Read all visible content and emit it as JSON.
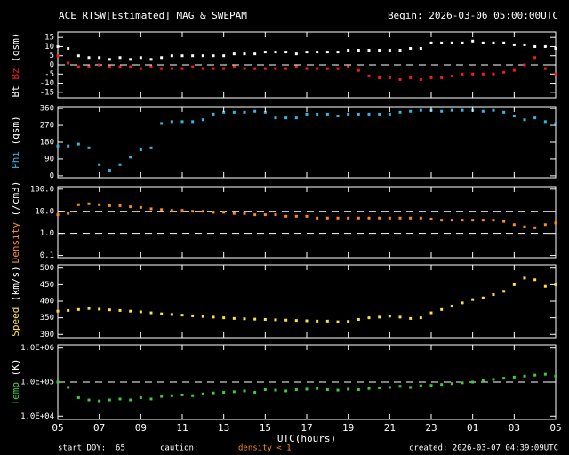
{
  "header": {
    "title": "ACE RTSW[Estimated] MAG & SWEPAM",
    "begin": "Begin: 2026-03-06 05:00:00UTC"
  },
  "footer": {
    "start": "start DOY:  65",
    "caution": "caution:",
    "density_note": "density < 1",
    "created": "created: 2026-03-07 04:39:09UTC"
  },
  "chart_data": [
    {
      "type": "scatter",
      "ylabel": "(gsm)",
      "xlim": [
        0,
        24
      ],
      "ylim": [
        -18,
        18
      ],
      "yticks": [
        15,
        10,
        5,
        0,
        -5,
        -10,
        -15
      ],
      "hlines": [
        0
      ],
      "x": [
        0,
        0.5,
        1,
        1.5,
        2,
        2.5,
        3,
        3.5,
        4,
        4.5,
        5,
        5.5,
        6,
        6.5,
        7,
        7.5,
        8,
        8.5,
        9,
        9.5,
        10,
        10.5,
        11,
        11.5,
        12,
        12.5,
        13,
        13.5,
        14,
        14.5,
        15,
        15.5,
        16,
        16.5,
        17,
        17.5,
        18,
        18.5,
        19,
        19.5,
        20,
        20.5,
        21,
        21.5,
        22,
        22.5,
        23,
        23.5,
        24
      ],
      "series": [
        {
          "name": "Bt",
          "color": "#ffffff",
          "values": [
            10,
            9,
            5,
            4,
            4,
            3,
            4,
            3,
            4,
            3,
            4,
            5,
            5,
            5,
            5,
            5,
            5,
            6,
            6,
            6,
            7,
            7,
            7,
            6,
            7,
            7,
            7,
            7,
            8,
            8,
            8,
            8,
            8,
            8,
            9,
            9,
            12,
            12,
            12,
            12,
            13,
            12,
            12,
            12,
            11,
            11,
            10,
            10,
            9
          ]
        },
        {
          "name": "Bz",
          "color": "#ff1a1a",
          "values": [
            5,
            1,
            -1,
            -1,
            0,
            -1,
            -1,
            -1,
            -2,
            -1,
            -2,
            -2,
            -2,
            -1,
            -2,
            -2,
            -2,
            -1,
            -2,
            -2,
            -2,
            -2,
            -2,
            -1,
            -2,
            -2,
            -2,
            -2,
            -1,
            -3,
            -6,
            -7,
            -7,
            -8,
            -7,
            -8,
            -7,
            -7,
            -6,
            -5,
            -5,
            -5,
            -5,
            -4,
            -3,
            0,
            4,
            -2,
            -5
          ]
        }
      ]
    },
    {
      "type": "scatter",
      "ylabel": "(gsm)",
      "xlim": [
        0,
        24
      ],
      "ylim": [
        -10,
        370
      ],
      "yticks": [
        360,
        270,
        180,
        90,
        0
      ],
      "x": [
        0,
        0.5,
        1,
        1.5,
        2,
        2.5,
        3,
        3.5,
        4,
        4.5,
        5,
        5.5,
        6,
        6.5,
        7,
        7.5,
        8,
        8.5,
        9,
        9.5,
        10,
        10.5,
        11,
        11.5,
        12,
        12.5,
        13,
        13.5,
        14,
        14.5,
        15,
        15.5,
        16,
        16.5,
        17,
        17.5,
        18,
        18.5,
        19,
        19.5,
        20,
        20.5,
        21,
        21.5,
        22,
        22.5,
        23,
        23.5,
        24
      ],
      "series": [
        {
          "name": "Phi",
          "color": "#33b8e8",
          "values": [
            160,
            160,
            170,
            150,
            60,
            30,
            60,
            100,
            140,
            150,
            280,
            290,
            290,
            290,
            300,
            330,
            340,
            340,
            340,
            345,
            340,
            310,
            310,
            310,
            330,
            330,
            330,
            320,
            330,
            330,
            330,
            330,
            330,
            340,
            345,
            350,
            350,
            345,
            350,
            350,
            350,
            345,
            350,
            340,
            320,
            300,
            310,
            290,
            280
          ]
        }
      ]
    },
    {
      "type": "scatter",
      "ylabel": "(/cm3)",
      "log_scale": true,
      "xlim": [
        0,
        24
      ],
      "ylim": [
        0.08,
        130
      ],
      "yticks": [
        {
          "value": 100,
          "label": "100.0"
        },
        {
          "value": 10,
          "label": "10.0"
        },
        {
          "value": 1,
          "label": "1.0"
        },
        {
          "value": 0.1,
          "label": "0.1"
        }
      ],
      "hlines": [
        10,
        1
      ],
      "x": [
        0,
        0.5,
        1,
        1.5,
        2,
        2.5,
        3,
        3.5,
        4,
        4.5,
        5,
        5.5,
        6,
        6.5,
        7,
        7.5,
        8,
        8.5,
        9,
        9.5,
        10,
        10.5,
        11,
        11.5,
        12,
        12.5,
        13,
        13.5,
        14,
        14.5,
        15,
        15.5,
        16,
        16.5,
        17,
        17.5,
        18,
        18.5,
        19,
        19.5,
        20,
        20.5,
        21,
        21.5,
        22,
        22.5,
        23,
        23.5,
        24
      ],
      "series": [
        {
          "name": "Density",
          "color": "#ff8c1a",
          "values": [
            7,
            8,
            20,
            22,
            20,
            18,
            18,
            16,
            15,
            13,
            12,
            11,
            11,
            10,
            10,
            9,
            9,
            8,
            8,
            7,
            7,
            7,
            6,
            6,
            6,
            5,
            5,
            5,
            5,
            5,
            5,
            5,
            5,
            5,
            5,
            5,
            4.5,
            4,
            4,
            4,
            4,
            4,
            4,
            3.5,
            2.5,
            2,
            1.8,
            2.5,
            3
          ]
        }
      ]
    },
    {
      "type": "scatter",
      "ylabel": "(km/s)",
      "xlim": [
        0,
        24
      ],
      "ylim": [
        290,
        510
      ],
      "yticks": [
        500,
        450,
        400,
        350,
        300
      ],
      "x": [
        0,
        0.5,
        1,
        1.5,
        2,
        2.5,
        3,
        3.5,
        4,
        4.5,
        5,
        5.5,
        6,
        6.5,
        7,
        7.5,
        8,
        8.5,
        9,
        9.5,
        10,
        10.5,
        11,
        11.5,
        12,
        12.5,
        13,
        13.5,
        14,
        14.5,
        15,
        15.5,
        16,
        16.5,
        17,
        17.5,
        18,
        18.5,
        19,
        19.5,
        20,
        20.5,
        21,
        21.5,
        22,
        22.5,
        23,
        23.5,
        24
      ],
      "series": [
        {
          "name": "Speed",
          "color": "#ffe23a",
          "values": [
            370,
            372,
            375,
            378,
            376,
            374,
            372,
            370,
            368,
            365,
            362,
            360,
            358,
            356,
            354,
            352,
            350,
            348,
            347,
            346,
            345,
            344,
            343,
            342,
            341,
            340,
            340,
            338,
            339,
            345,
            350,
            352,
            355,
            352,
            348,
            350,
            365,
            375,
            385,
            395,
            405,
            410,
            420,
            430,
            450,
            470,
            465,
            445,
            450
          ]
        }
      ]
    },
    {
      "type": "scatter",
      "ylabel": "(K)",
      "log_scale": true,
      "xlim": [
        0,
        24
      ],
      "ylim": [
        8000,
        1250000
      ],
      "yticks": [
        {
          "value": 1000000,
          "label": "1.0E+06"
        },
        {
          "value": 100000,
          "label": "1.0E+05"
        },
        {
          "value": 10000,
          "label": "1.0E+04"
        }
      ],
      "hlines": [
        100000
      ],
      "xlabel": "UTC(hours)",
      "xticks": [
        {
          "value": 0,
          "label": "05"
        },
        {
          "value": 2,
          "label": "07"
        },
        {
          "value": 4,
          "label": "09"
        },
        {
          "value": 6,
          "label": "11"
        },
        {
          "value": 8,
          "label": "13"
        },
        {
          "value": 10,
          "label": "15"
        },
        {
          "value": 12,
          "label": "17"
        },
        {
          "value": 14,
          "label": "19"
        },
        {
          "value": 16,
          "label": "21"
        },
        {
          "value": 18,
          "label": "23"
        },
        {
          "value": 20,
          "label": "01"
        },
        {
          "value": 22,
          "label": "03"
        },
        {
          "value": 24,
          "label": "05"
        }
      ],
      "x": [
        0,
        0.5,
        1,
        1.5,
        2,
        2.5,
        3,
        3.5,
        4,
        4.5,
        5,
        5.5,
        6,
        6.5,
        7,
        7.5,
        8,
        8.5,
        9,
        9.5,
        10,
        10.5,
        11,
        11.5,
        12,
        12.5,
        13,
        13.5,
        14,
        14.5,
        15,
        15.5,
        16,
        16.5,
        17,
        17.5,
        18,
        18.5,
        19,
        19.5,
        20,
        20.5,
        21,
        21.5,
        22,
        22.5,
        23,
        23.5,
        24
      ],
      "series": [
        {
          "name": "Temp",
          "color": "#3ccf3c",
          "values": [
            100000,
            70000,
            35000,
            30000,
            28000,
            30000,
            32000,
            30000,
            35000,
            32000,
            38000,
            40000,
            42000,
            40000,
            45000,
            48000,
            50000,
            52000,
            55000,
            50000,
            60000,
            58000,
            55000,
            60000,
            62000,
            65000,
            60000,
            58000,
            62000,
            60000,
            65000,
            68000,
            70000,
            75000,
            70000,
            78000,
            80000,
            85000,
            90000,
            95000,
            100000,
            110000,
            120000,
            130000,
            140000,
            150000,
            160000,
            170000,
            150000
          ]
        }
      ]
    }
  ]
}
